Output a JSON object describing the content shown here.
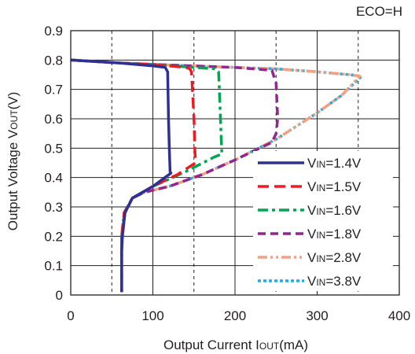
{
  "chart_data": {
    "type": "line",
    "annotation": "ECO=H",
    "xlabel": "Output Current I",
    "xlabel_sub": "OUT",
    "xlabel_suffix": "(mA)",
    "ylabel": "Output Voltage V",
    "ylabel_sub": "OUT",
    "ylabel_suffix": "(V)",
    "xlim": [
      0,
      400
    ],
    "ylim": [
      0,
      0.9
    ],
    "xticks": [
      0,
      100,
      200,
      300,
      400
    ],
    "xtick_labels": [
      "0",
      "100",
      "200",
      "300",
      "400"
    ],
    "yticks": [
      0,
      0.1,
      0.2,
      0.3,
      0.4,
      0.5,
      0.6,
      0.7,
      0.8,
      0.9
    ],
    "ytick_labels": [
      "0",
      "0.1",
      "0.2",
      "0.3",
      "0.4",
      "0.5",
      "0.6",
      "0.7",
      "0.8",
      "0.9"
    ],
    "dashed_vlines": [
      50,
      150,
      250,
      350
    ],
    "grid": true,
    "legend_position": "bottom-right",
    "series": [
      {
        "name_main": "V",
        "name_sub": "IN",
        "name_suffix": "=1.4V",
        "color": "#2e3192",
        "dash": "solid",
        "x": [
          0,
          60,
          100,
          115,
          118,
          119,
          120,
          121,
          122,
          100,
          75,
          66,
          63,
          62,
          62,
          62
        ],
        "y": [
          0.8,
          0.79,
          0.78,
          0.775,
          0.76,
          0.6,
          0.5,
          0.42,
          0.415,
          0.37,
          0.33,
          0.28,
          0.2,
          0.15,
          0.05,
          0.01
        ]
      },
      {
        "name_main": "V",
        "name_sub": "IN",
        "name_suffix": "=1.5V",
        "color": "#ed1c24",
        "dash": "longdash",
        "x": [
          0,
          60,
          100,
          140,
          145,
          147,
          150,
          151,
          152,
          130,
          100,
          75,
          65,
          62,
          62,
          62
        ],
        "y": [
          0.8,
          0.79,
          0.785,
          0.775,
          0.77,
          0.76,
          0.6,
          0.5,
          0.45,
          0.41,
          0.37,
          0.33,
          0.28,
          0.2,
          0.1,
          0.01
        ]
      },
      {
        "name_main": "V",
        "name_sub": "IN",
        "name_suffix": "=1.6V",
        "color": "#00a651",
        "dash": "dashdot",
        "x": [
          0,
          60,
          100,
          150,
          175,
          180,
          181,
          183,
          184,
          175,
          140,
          100,
          75,
          65,
          62,
          62
        ],
        "y": [
          0.8,
          0.79,
          0.785,
          0.775,
          0.77,
          0.76,
          0.7,
          0.55,
          0.48,
          0.47,
          0.42,
          0.37,
          0.33,
          0.28,
          0.2,
          0.01
        ]
      },
      {
        "name_main": "V",
        "name_sub": "IN",
        "name_suffix": "=1.8V",
        "color": "#92278f",
        "dash": "dash",
        "x": [
          0,
          60,
          100,
          150,
          200,
          245,
          250,
          252,
          250,
          245,
          200,
          160,
          120,
          90,
          75,
          66,
          62,
          62
        ],
        "y": [
          0.8,
          0.79,
          0.785,
          0.78,
          0.775,
          0.765,
          0.72,
          0.6,
          0.55,
          0.52,
          0.46,
          0.41,
          0.37,
          0.35,
          0.33,
          0.28,
          0.2,
          0.01
        ]
      },
      {
        "name_main": "V",
        "name_sub": "IN",
        "name_suffix": "=2.8V",
        "color": "#f7a07e",
        "dash": "dashdotdot",
        "x": [
          0,
          60,
          100,
          150,
          200,
          250,
          300,
          340,
          352,
          330,
          300,
          250,
          200,
          160,
          120,
          90,
          75,
          66,
          62,
          62
        ],
        "y": [
          0.8,
          0.79,
          0.785,
          0.78,
          0.775,
          0.77,
          0.76,
          0.75,
          0.745,
          0.68,
          0.62,
          0.53,
          0.46,
          0.41,
          0.37,
          0.35,
          0.33,
          0.28,
          0.2,
          0.01
        ]
      },
      {
        "name_main": "V",
        "name_sub": "IN",
        "name_suffix": "=3.8V",
        "color": "#27aae1",
        "dash": "dot",
        "x": [
          0,
          60,
          100,
          150,
          200,
          250,
          300,
          340,
          354,
          330,
          300,
          250,
          200,
          160,
          120,
          90,
          75,
          66,
          62,
          62
        ],
        "y": [
          0.8,
          0.79,
          0.785,
          0.78,
          0.775,
          0.77,
          0.76,
          0.75,
          0.745,
          0.68,
          0.62,
          0.53,
          0.46,
          0.41,
          0.37,
          0.35,
          0.33,
          0.28,
          0.2,
          0.01
        ]
      }
    ]
  }
}
